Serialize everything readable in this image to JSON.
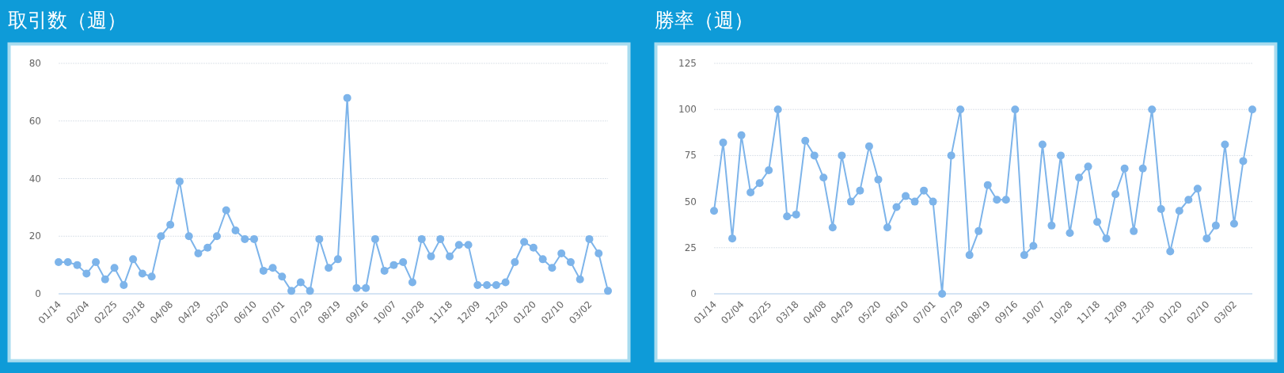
{
  "chart_data": [
    {
      "type": "line",
      "title": "取引数（週）",
      "categories": [
        "01/14",
        null,
        null,
        "02/04",
        null,
        null,
        "02/25",
        null,
        null,
        "03/18",
        null,
        null,
        "04/08",
        null,
        null,
        "04/29",
        null,
        null,
        "05/20",
        null,
        null,
        "06/10",
        null,
        null,
        "07/01",
        null,
        null,
        "07/29",
        null,
        null,
        "08/19",
        null,
        null,
        "09/16",
        null,
        null,
        "10/07",
        null,
        null,
        "10/28",
        null,
        null,
        "11/18",
        null,
        null,
        "12/09",
        null,
        null,
        "12/30",
        null,
        null,
        "01/20",
        null,
        null,
        "02/10",
        null,
        null,
        "03/02",
        null,
        null
      ],
      "series": [
        {
          "color": "#7db4ea",
          "values": [
            11,
            11,
            10,
            7,
            11,
            5,
            9,
            3,
            12,
            7,
            6,
            20,
            24,
            39,
            20,
            14,
            16,
            20,
            29,
            22,
            19,
            19,
            8,
            9,
            6,
            1,
            4,
            1,
            19,
            9,
            12,
            68,
            2,
            2,
            19,
            8,
            10,
            11,
            4,
            19,
            13,
            19,
            13,
            17,
            17,
            3,
            3,
            3,
            4,
            11,
            18,
            16,
            12,
            9,
            14,
            11,
            5,
            19,
            14,
            1
          ]
        }
      ],
      "ylim": [
        0,
        80
      ],
      "yticks": [
        0,
        20,
        40,
        60,
        80
      ],
      "grid": "y",
      "marker": "circle"
    },
    {
      "type": "line",
      "title": "勝率（週）",
      "categories": [
        "01/14",
        null,
        null,
        "02/04",
        null,
        null,
        "02/25",
        null,
        null,
        "03/18",
        null,
        null,
        "04/08",
        null,
        null,
        "04/29",
        null,
        null,
        "05/20",
        null,
        null,
        "06/10",
        null,
        null,
        "07/01",
        null,
        null,
        "07/29",
        null,
        null,
        "08/19",
        null,
        null,
        "09/16",
        null,
        null,
        "10/07",
        null,
        null,
        "10/28",
        null,
        null,
        "11/18",
        null,
        null,
        "12/09",
        null,
        null,
        "12/30",
        null,
        null,
        "01/20",
        null,
        null,
        "02/10",
        null,
        null,
        "03/02",
        null,
        null
      ],
      "series": [
        {
          "color": "#7db4ea",
          "values": [
            45,
            82,
            30,
            86,
            55,
            60,
            67,
            100,
            42,
            43,
            83,
            75,
            63,
            36,
            75,
            50,
            56,
            80,
            62,
            36,
            47,
            53,
            50,
            56,
            50,
            0,
            75,
            100,
            21,
            34,
            59,
            51,
            51,
            100,
            21,
            26,
            81,
            37,
            75,
            33,
            63,
            69,
            39,
            30,
            54,
            68,
            34,
            68,
            100,
            46,
            23,
            45,
            51,
            57,
            30,
            37,
            81,
            38,
            72,
            100
          ]
        }
      ],
      "ylim": [
        0,
        125
      ],
      "yticks": [
        0,
        25,
        50,
        75,
        100,
        125
      ],
      "grid": "y",
      "marker": "circle"
    }
  ]
}
